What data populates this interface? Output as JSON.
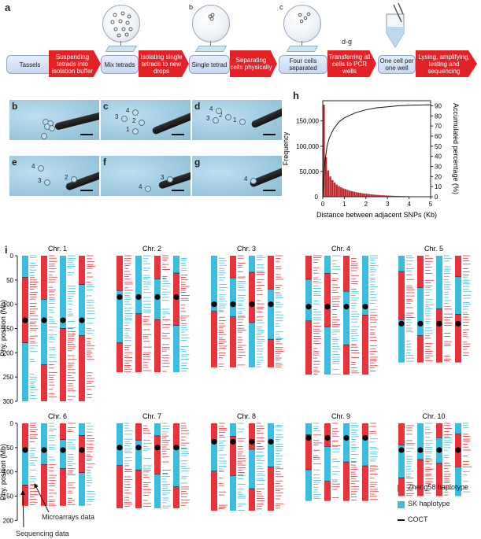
{
  "panels": {
    "a": "a",
    "b": "b",
    "c": "c",
    "d": "d",
    "e": "e",
    "f": "f",
    "g": "g",
    "h": "h",
    "i": "i"
  },
  "workflow": {
    "steps": [
      {
        "kind": "box",
        "text": "Tassels"
      },
      {
        "kind": "arrow",
        "text": "Suspending tetrads into isolation buffer"
      },
      {
        "kind": "box",
        "text": "Mix tetrads"
      },
      {
        "kind": "arrow",
        "text": "Isolating single tetrads to new drops"
      },
      {
        "kind": "box",
        "text": "Single tetrad"
      },
      {
        "kind": "arrow",
        "text": "Separating cells physically"
      },
      {
        "kind": "box",
        "text": "Four cells separated"
      },
      {
        "kind": "arrow",
        "text": "Transferring all cells to PCR wells"
      },
      {
        "kind": "box",
        "text": "One cell per one well"
      },
      {
        "kind": "arrow",
        "text": "Lysing, amplifying, testing and sequencing"
      }
    ],
    "dish_labels": {
      "b": "b",
      "c": "c",
      "dg": "d-g"
    }
  },
  "micrographs": [
    {
      "label": "b",
      "cells": []
    },
    {
      "label": "c",
      "cells": [
        "1",
        "2",
        "3",
        "4"
      ]
    },
    {
      "label": "d",
      "cells": [
        "1",
        "2",
        "3",
        "4"
      ]
    },
    {
      "label": "e",
      "cells": [
        "2",
        "3",
        "4"
      ]
    },
    {
      "label": "f",
      "cells": [
        "3",
        "4"
      ]
    },
    {
      "label": "g",
      "cells": [
        "4"
      ]
    }
  ],
  "chart_data": {
    "type": "bar",
    "panel": "h",
    "xlabel": "Distance between adjacent SNPs (Kb)",
    "ylabel": "Frequency",
    "y2label": "Accumulated percentage (%)",
    "xlim": [
      0,
      5
    ],
    "ylim": [
      0,
      190000
    ],
    "x_ticks": [
      "0",
      "1",
      "2",
      "3",
      "4",
      "5"
    ],
    "y_ticks": [
      "50,000",
      "100,000",
      "150,000"
    ],
    "y_tick_values": [
      50000,
      100000,
      150000
    ],
    "y2_ticks": [
      "0",
      "10",
      "20",
      "30",
      "40",
      "50",
      "60",
      "70",
      "80",
      "90"
    ],
    "y2_lim": [
      0,
      95
    ],
    "bar_x": [
      0.05,
      0.15,
      0.25,
      0.35,
      0.45,
      0.55,
      0.65,
      0.75,
      0.85,
      0.95,
      1.05,
      1.15,
      1.25,
      1.35,
      1.45,
      1.55,
      1.65,
      1.75,
      1.85,
      1.95,
      2.05,
      2.15,
      2.25,
      2.35,
      2.45,
      2.55,
      2.65,
      2.75,
      2.85,
      2.95,
      3.05,
      3.15,
      3.25,
      3.35,
      3.45,
      3.55,
      3.65,
      3.75,
      3.85,
      3.95
    ],
    "bar_values": [
      182000,
      78000,
      52000,
      40000,
      33000,
      28000,
      24000,
      21000,
      18500,
      16500,
      15000,
      13500,
      12000,
      11000,
      10000,
      9000,
      8200,
      7500,
      6800,
      6200,
      5700,
      5200,
      4700,
      4300,
      3900,
      3600,
      3300,
      3000,
      2700,
      2500,
      2300,
      2100,
      1900,
      1700,
      1600,
      1400,
      1300,
      1200,
      1100,
      1000
    ],
    "cumulative": {
      "x": [
        0,
        0.1,
        0.2,
        0.3,
        0.5,
        0.75,
        1,
        1.5,
        2,
        2.5,
        3,
        3.5,
        4,
        5
      ],
      "y": [
        0,
        35,
        50,
        58,
        67,
        74,
        78,
        83,
        86,
        88,
        89,
        90,
        90.5,
        91
      ]
    },
    "bar_color": "#c0282e",
    "line_color": "#111111"
  },
  "chromosomes": {
    "ylabel": "Phy. position (Mb)",
    "row1_ticks": [
      "0",
      "50",
      "100",
      "150",
      "200",
      "250",
      "300"
    ],
    "row1_tick_values": [
      0,
      50,
      100,
      150,
      200,
      250,
      300
    ],
    "row2_ticks": [
      "0",
      "50",
      "100",
      "150",
      "200"
    ],
    "row2_tick_values": [
      0,
      50,
      100,
      150,
      200
    ],
    "items": [
      {
        "name": "Chr. 1",
        "length": 300,
        "centromere": 133
      },
      {
        "name": "Chr. 2",
        "length": 240,
        "centromere": 85
      },
      {
        "name": "Chr. 3",
        "length": 230,
        "centromere": 100
      },
      {
        "name": "Chr. 4",
        "length": 245,
        "centromere": 105
      },
      {
        "name": "Chr. 5",
        "length": 220,
        "centromere": 140
      },
      {
        "name": "Chr. 6",
        "length": 170,
        "centromere": 55
      },
      {
        "name": "Chr. 7",
        "length": 175,
        "centromere": 50
      },
      {
        "name": "Chr. 8",
        "length": 180,
        "centromere": 38
      },
      {
        "name": "Chr. 9",
        "length": 160,
        "centromere": 30
      },
      {
        "name": "Chr. 10",
        "length": 150,
        "centromere": 55
      }
    ],
    "colors": {
      "zheng58": "#e8333a",
      "sk": "#3bbde0"
    },
    "legend": {
      "zheng58": "Zheng58 haplotype",
      "sk": "SK haplotype",
      "coct": "COCT"
    },
    "annotations": {
      "microarrays": "Microarrays data",
      "sequencing": "Sequencing data"
    }
  }
}
